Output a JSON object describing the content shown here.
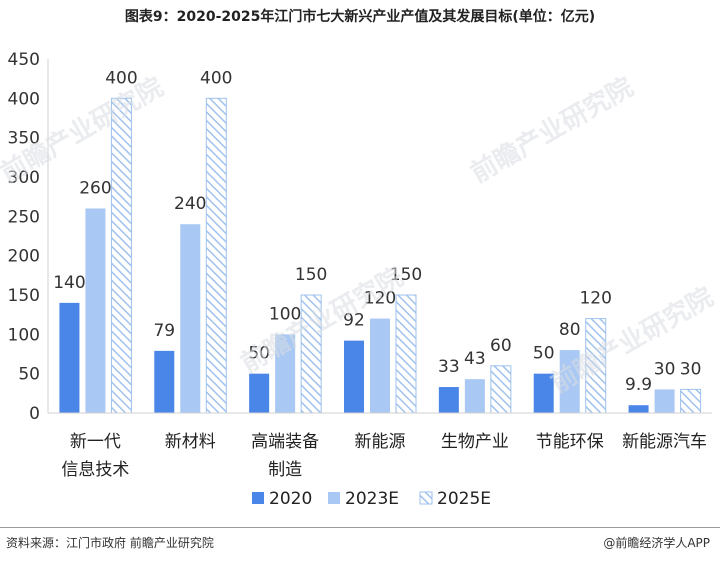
{
  "title": "图表9：2020-2025年江门市七大新兴产业产值及其发展目标(单位：亿元)",
  "footer": {
    "source": "资料来源：江门市政府 前瞻产业研究院",
    "credit": "@前瞻经济学人APP"
  },
  "watermark": "前瞻产业研究院",
  "colors": {
    "s2020": "#4a86e8",
    "s2023E": "#a9c8f3",
    "s2025E_stripe": "#9fc2ee",
    "axis": "#d0d0d0"
  },
  "chart_data": {
    "type": "bar",
    "title": "图表9：2020-2025年江门市七大新兴产业产值及其发展目标(单位：亿元)",
    "xlabel": "",
    "ylabel": "",
    "ylim": [
      0,
      450
    ],
    "yticks": [
      0,
      50,
      100,
      150,
      200,
      250,
      300,
      350,
      400,
      450
    ],
    "categories": [
      [
        "新一代",
        "信息技术"
      ],
      [
        "新材料"
      ],
      [
        "高端装备",
        "制造"
      ],
      [
        "新能源"
      ],
      [
        "生物产业"
      ],
      [
        "节能环保"
      ],
      [
        "新能源汽车"
      ]
    ],
    "series": [
      {
        "name": "2020",
        "values": [
          140,
          79,
          50,
          92,
          33,
          50,
          9.9
        ],
        "labels": [
          "140",
          "79",
          "50",
          "92",
          "33",
          "50",
          "9.9"
        ]
      },
      {
        "name": "2023E",
        "values": [
          260,
          240,
          100,
          120,
          43,
          80,
          30
        ],
        "labels": [
          "260",
          "240",
          "100",
          "120",
          "43",
          "80",
          "30"
        ]
      },
      {
        "name": "2025E",
        "values": [
          400,
          400,
          150,
          150,
          60,
          120,
          30
        ],
        "labels": [
          "400",
          "400",
          "150",
          "150",
          "60",
          "120",
          "30"
        ]
      }
    ],
    "legend_position": "bottom",
    "grid": false
  }
}
